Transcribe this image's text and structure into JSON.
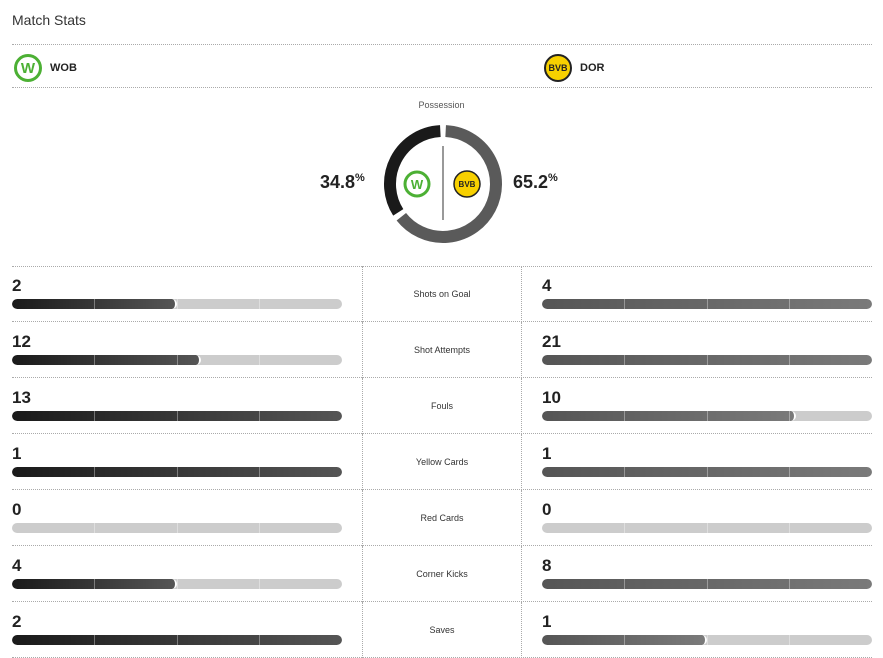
{
  "title": "Match Stats",
  "home": {
    "abbr": "WOB",
    "logo_text": "W",
    "possession": "34.8",
    "color": "#1a1a1a"
  },
  "away": {
    "abbr": "DOR",
    "logo_text": "BVB",
    "possession": "65.2",
    "color": "#5a5a5a"
  },
  "possession_label": "Possession",
  "percent_sign": "%",
  "stats": [
    {
      "label": "Shots on Goal",
      "home": 2,
      "away": 4
    },
    {
      "label": "Shot Attempts",
      "home": 12,
      "away": 21
    },
    {
      "label": "Fouls",
      "home": 13,
      "away": 10
    },
    {
      "label": "Yellow Cards",
      "home": 1,
      "away": 1
    },
    {
      "label": "Red Cards",
      "home": 0,
      "away": 0
    },
    {
      "label": "Corner Kicks",
      "home": 4,
      "away": 8
    },
    {
      "label": "Saves",
      "home": 2,
      "away": 1
    }
  ]
}
